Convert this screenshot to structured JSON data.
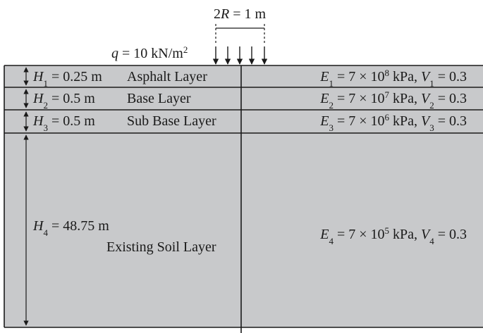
{
  "load": {
    "width_label": {
      "pre": "2",
      "var": "R",
      "post": " = 1 m"
    },
    "pressure_label": {
      "var": "q",
      "pre": " = 10 kN/m",
      "sup": "2"
    }
  },
  "layers": [
    {
      "thickness": {
        "var": "H",
        "sub": "1",
        "value": " = 0.25 m"
      },
      "name": "Asphalt Layer",
      "props": {
        "e_sub": "1",
        "e_mid": " = 7 × 10",
        "e_exp": "8",
        "e_unit": " kPa, ",
        "v_sub": "1",
        "v_val": " = 0.3"
      }
    },
    {
      "thickness": {
        "var": "H",
        "sub": "2",
        "value": " = 0.5 m"
      },
      "name": "Base Layer",
      "props": {
        "e_sub": "2",
        "e_mid": " = 7 × 10",
        "e_exp": "7",
        "e_unit": " kPa, ",
        "v_sub": "2",
        "v_val": " = 0.3"
      }
    },
    {
      "thickness": {
        "var": "H",
        "sub": "3",
        "value": " = 0.5 m"
      },
      "name": "Sub Base Layer",
      "props": {
        "e_sub": "3",
        "e_mid": " = 7 × 10",
        "e_exp": "6",
        "e_unit": " kPa, ",
        "v_sub": "3",
        "v_val": " = 0.3"
      }
    },
    {
      "thickness": {
        "var": "H",
        "sub": "4",
        "value": " = 48.75 m"
      },
      "name": "Existing Soil Layer",
      "props": {
        "e_sub": "4",
        "e_mid": " = 7 × 10",
        "e_exp": "5",
        "e_unit": " kPa, ",
        "v_sub": "4",
        "v_val": " = 0.3"
      }
    }
  ],
  "symbols": {
    "E": "E",
    "V": "V"
  },
  "colors": {
    "layer_fill": "#c8c9cb",
    "line": "#1a1a1a"
  }
}
